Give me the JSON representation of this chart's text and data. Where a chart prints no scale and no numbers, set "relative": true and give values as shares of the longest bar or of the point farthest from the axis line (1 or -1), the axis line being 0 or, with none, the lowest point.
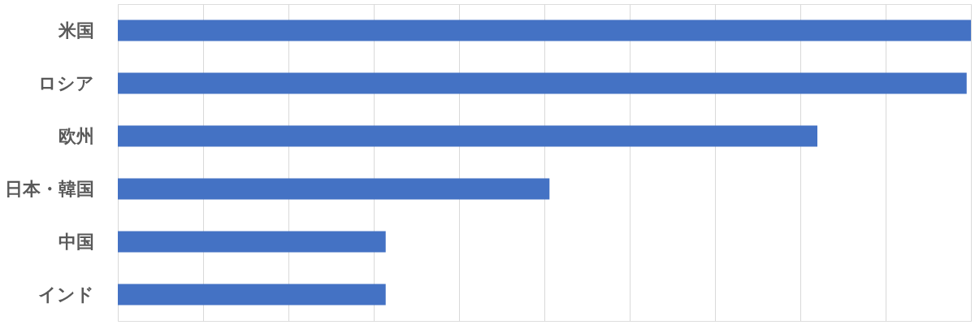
{
  "chart_data": {
    "type": "bar",
    "orientation": "horizontal",
    "relative": true,
    "grid": "x",
    "categories": [
      "米国",
      "ロシア",
      "欧州",
      "日本・韓国",
      "中国",
      "インド"
    ],
    "values": [
      1,
      0.995,
      0.82,
      0.506,
      0.314,
      0.314
    ],
    "color": "#4472c4"
  }
}
